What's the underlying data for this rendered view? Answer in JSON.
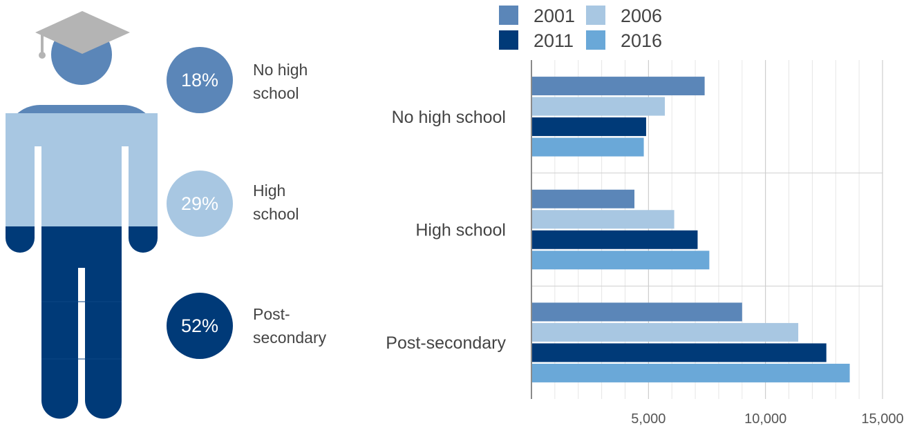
{
  "colors": {
    "y2001": "#5b86b8",
    "y2006": "#a8c7e2",
    "y2011": "#003a78",
    "y2016": "#6aa8d8",
    "cap": "#b4b4b4"
  },
  "person_figure": {
    "icons": [
      "graduation-cap-icon",
      "person-icon"
    ],
    "segments": [
      {
        "label_line1": "No high",
        "label_line2": "school",
        "percent": "18%",
        "share": 0.18,
        "color": "#5b86b8"
      },
      {
        "label_line1": "High",
        "label_line2": "school",
        "percent": "29%",
        "share": 0.29,
        "color": "#a8c7e2"
      },
      {
        "label_line1": "Post-",
        "label_line2": "secondary",
        "percent": "52%",
        "share": 0.52,
        "color": "#003a78"
      }
    ]
  },
  "chart_data": {
    "type": "bar",
    "orientation": "horizontal",
    "categories": [
      "No high school",
      "High school",
      "Post-secondary"
    ],
    "series": [
      {
        "name": "2001",
        "color": "#5b86b8",
        "values": [
          7400,
          4400,
          9000
        ]
      },
      {
        "name": "2006",
        "color": "#a8c7e2",
        "values": [
          5700,
          6100,
          11400
        ]
      },
      {
        "name": "2011",
        "color": "#003a78",
        "values": [
          4900,
          7100,
          12600
        ]
      },
      {
        "name": "2016",
        "color": "#6aa8d8",
        "values": [
          4800,
          7600,
          13600
        ]
      }
    ],
    "xlim": [
      0,
      15000
    ],
    "xticks": [
      5000,
      10000,
      15000
    ],
    "xtick_labels": [
      "5,000",
      "10,000",
      "15,000"
    ],
    "minor_gridlines": true,
    "legend_position": "top",
    "title": "",
    "xlabel": "",
    "ylabel": ""
  }
}
